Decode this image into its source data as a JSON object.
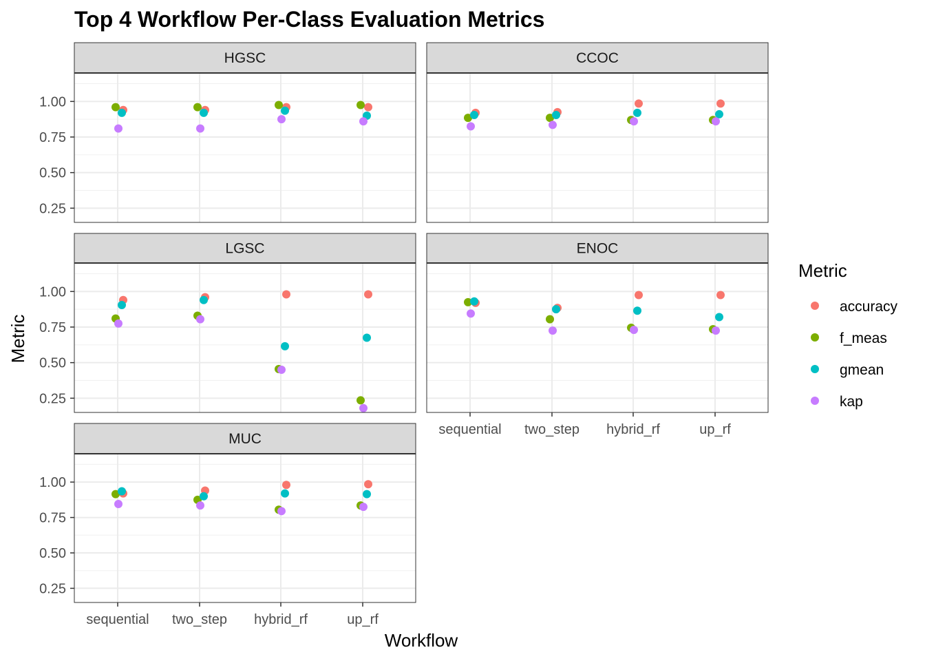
{
  "chart_data": {
    "type": "scatter",
    "title": "Top 4 Workflow Per-Class Evaluation Metrics",
    "xlabel": "Workflow",
    "ylabel": "Metric",
    "categories": [
      "sequential",
      "two_step",
      "hybrid_rf",
      "up_rf"
    ],
    "y_ticks": [
      "0.25",
      "0.50",
      "0.75",
      "1.00"
    ],
    "ylim": [
      0.15,
      1.2
    ],
    "grid": true,
    "legend": {
      "title": "Metric",
      "position": "right",
      "items": [
        {
          "name": "accuracy",
          "color": "#F8766D"
        },
        {
          "name": "f_meas",
          "color": "#7CAE00"
        },
        {
          "name": "gmean",
          "color": "#00BFC4"
        },
        {
          "name": "kap",
          "color": "#C77CFF"
        }
      ]
    },
    "panels": [
      {
        "label": "HGSC",
        "series": [
          {
            "name": "accuracy",
            "values": [
              0.94,
              0.94,
              0.96,
              0.96
            ]
          },
          {
            "name": "f_meas",
            "values": [
              0.96,
              0.96,
              0.975,
              0.975
            ]
          },
          {
            "name": "gmean",
            "values": [
              0.92,
              0.92,
              0.935,
              0.9
            ]
          },
          {
            "name": "kap",
            "values": [
              0.81,
              0.81,
              0.875,
              0.86
            ]
          }
        ]
      },
      {
        "label": "CCOC",
        "series": [
          {
            "name": "accuracy",
            "values": [
              0.92,
              0.925,
              0.985,
              0.985
            ]
          },
          {
            "name": "f_meas",
            "values": [
              0.885,
              0.885,
              0.87,
              0.87
            ]
          },
          {
            "name": "gmean",
            "values": [
              0.905,
              0.905,
              0.92,
              0.91
            ]
          },
          {
            "name": "kap",
            "values": [
              0.825,
              0.835,
              0.86,
              0.86
            ]
          }
        ]
      },
      {
        "label": "LGSC",
        "series": [
          {
            "name": "accuracy",
            "values": [
              0.94,
              0.96,
              0.98,
              0.98
            ]
          },
          {
            "name": "f_meas",
            "values": [
              0.81,
              0.83,
              0.455,
              0.235
            ]
          },
          {
            "name": "gmean",
            "values": [
              0.905,
              0.94,
              0.615,
              0.675
            ]
          },
          {
            "name": "kap",
            "values": [
              0.775,
              0.805,
              0.45,
              0.18
            ]
          }
        ]
      },
      {
        "label": "ENOC",
        "series": [
          {
            "name": "accuracy",
            "values": [
              0.92,
              0.885,
              0.975,
              0.975
            ]
          },
          {
            "name": "f_meas",
            "values": [
              0.925,
              0.805,
              0.745,
              0.735
            ]
          },
          {
            "name": "gmean",
            "values": [
              0.93,
              0.875,
              0.865,
              0.82
            ]
          },
          {
            "name": "kap",
            "values": [
              0.845,
              0.725,
              0.73,
              0.725
            ]
          }
        ]
      },
      {
        "label": "MUC",
        "series": [
          {
            "name": "accuracy",
            "values": [
              0.92,
              0.94,
              0.98,
              0.985
            ]
          },
          {
            "name": "f_meas",
            "values": [
              0.915,
              0.875,
              0.805,
              0.835
            ]
          },
          {
            "name": "gmean",
            "values": [
              0.935,
              0.9,
              0.92,
              0.915
            ]
          },
          {
            "name": "kap",
            "values": [
              0.845,
              0.835,
              0.795,
              0.825
            ]
          }
        ]
      }
    ]
  }
}
